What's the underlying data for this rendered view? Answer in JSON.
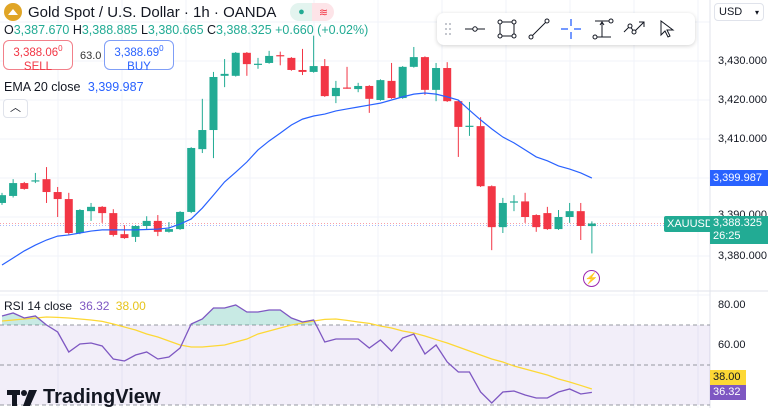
{
  "header": {
    "symbol_title": "Gold Spot / U.S. Dollar · 1h · OANDA",
    "market_status_icon": "green-dot-open",
    "ohlc": {
      "o_label": "O",
      "o": "3,387.670",
      "h_label": "H",
      "h": "3,388.885",
      "l_label": "L",
      "l": "3,380.665",
      "c_label": "C",
      "c": "3,388.325",
      "change": "+0.660 (+0.02%)"
    }
  },
  "trade": {
    "sell_price": "3,388.06",
    "sell_sup": "0",
    "sell_label": "SELL",
    "spread": "63.0",
    "buy_price": "3,388.69",
    "buy_sup": "0",
    "buy_label": "BUY"
  },
  "ema_legend": {
    "label": "EMA 20 close",
    "value": "3,399.987"
  },
  "collapse_icon": "chevron-up-icon",
  "toolbar": {
    "tools": [
      "drag-handle",
      "horizontal-ray",
      "rectangle",
      "trend-line",
      "crosshair",
      "price-range",
      "path",
      "cursor"
    ]
  },
  "currency": {
    "label": "USD"
  },
  "price_axis": {
    "ticks": [
      "3,430.000",
      "3,420.000",
      "3,410.000",
      "3,390.000",
      "3,380.000"
    ],
    "tick_values": [
      3430,
      3420,
      3410,
      3390,
      3380
    ]
  },
  "tags": {
    "ema_value": "3,399.987",
    "symbol": "XAUUSD",
    "last_price": "3,388.325",
    "countdown": "26:25"
  },
  "rsi": {
    "legend_label": "RSI 14 close",
    "rsi_value": "36.32",
    "ma_value": "38.00",
    "ticks": [
      "80.00",
      "60.00"
    ],
    "tick_values": [
      80,
      60
    ],
    "band": [
      30,
      70
    ],
    "mid": 50
  },
  "brand": {
    "name": "TradingView"
  },
  "colors": {
    "up": "#22ab94",
    "down": "#f23645",
    "ema": "#2962ff",
    "rsi": "#7e57c2",
    "rsi_ma": "#fdd835",
    "band": "#7e57c2"
  },
  "chart_data": {
    "type": "candlestick",
    "ylim": [
      3370,
      3440
    ],
    "candles": [
      [
        3393.6,
        3396.2,
        3393.1,
        3395.6
      ],
      [
        3395.4,
        3399.7,
        3395.0,
        3398.7
      ],
      [
        3398.7,
        3399.0,
        3397.0,
        3397.2
      ],
      [
        3399.2,
        3401.3,
        3398.7,
        3399.4
      ],
      [
        3399.7,
        3402.8,
        3393.6,
        3396.4
      ],
      [
        3396.4,
        3397.7,
        3390.0,
        3394.6
      ],
      [
        3394.6,
        3396.2,
        3385.4,
        3385.9
      ],
      [
        3385.9,
        3392.0,
        3385.6,
        3391.8
      ],
      [
        3391.5,
        3393.6,
        3389.0,
        3392.6
      ],
      [
        3392.6,
        3392.8,
        3388.5,
        3391.0
      ],
      [
        3391.0,
        3392.0,
        3385.0,
        3385.4
      ],
      [
        3385.6,
        3387.9,
        3384.4,
        3384.6
      ],
      [
        3384.9,
        3387.9,
        3383.6,
        3387.7
      ],
      [
        3387.7,
        3390.2,
        3386.8,
        3389.0
      ],
      [
        3389.0,
        3390.5,
        3385.1,
        3386.2
      ],
      [
        3386.2,
        3388.7,
        3386.0,
        3386.9
      ],
      [
        3386.9,
        3391.5,
        3386.7,
        3391.3
      ],
      [
        3391.3,
        3407.9,
        3391.0,
        3407.7
      ],
      [
        3407.4,
        3420.3,
        3406.4,
        3412.3
      ],
      [
        3412.3,
        3427.2,
        3405.1,
        3425.9
      ],
      [
        3426.2,
        3430.5,
        3423.3,
        3426.7
      ],
      [
        3426.2,
        3432.3,
        3426.0,
        3432.1
      ],
      [
        3432.1,
        3432.3,
        3426.2,
        3429.2
      ],
      [
        3429.1,
        3430.8,
        3428.0,
        3429.3
      ],
      [
        3429.5,
        3432.6,
        3429.3,
        3431.3
      ],
      [
        3431.5,
        3432.4,
        3428.9,
        3431.4
      ],
      [
        3430.8,
        3431.0,
        3427.5,
        3427.7
      ],
      [
        3427.7,
        3433.1,
        3426.4,
        3427.2
      ],
      [
        3427.2,
        3436.5,
        3427.0,
        3428.7
      ],
      [
        3428.7,
        3430.5,
        3420.8,
        3421.0
      ],
      [
        3421.0,
        3424.9,
        3419.2,
        3423.1
      ],
      [
        3423.2,
        3428.5,
        3422.9,
        3423.0
      ],
      [
        3422.8,
        3424.4,
        3422.0,
        3423.6
      ],
      [
        3423.6,
        3423.8,
        3416.7,
        3420.3
      ],
      [
        3420.0,
        3425.3,
        3419.8,
        3425.1
      ],
      [
        3424.9,
        3429.5,
        3420.3,
        3420.5
      ],
      [
        3420.5,
        3428.7,
        3420.3,
        3428.5
      ],
      [
        3428.5,
        3433.6,
        3428.3,
        3431.0
      ],
      [
        3431.0,
        3431.2,
        3421.3,
        3422.6
      ],
      [
        3422.6,
        3429.5,
        3419.7,
        3428.2
      ],
      [
        3428.2,
        3429.7,
        3419.5,
        3419.7
      ],
      [
        3419.7,
        3419.9,
        3405.4,
        3413.1
      ],
      [
        3413.2,
        3419.5,
        3410.8,
        3413.4
      ],
      [
        3413.3,
        3415.6,
        3397.7,
        3397.9
      ],
      [
        3397.9,
        3398.1,
        3381.5,
        3387.4
      ],
      [
        3387.4,
        3394.9,
        3385.9,
        3393.6
      ],
      [
        3393.7,
        3395.6,
        3391.5,
        3394.0
      ],
      [
        3394.0,
        3396.2,
        3388.5,
        3390.0
      ],
      [
        3390.5,
        3390.7,
        3386.2,
        3387.4
      ],
      [
        3391.0,
        3392.6,
        3386.7,
        3386.9
      ],
      [
        3386.9,
        3391.8,
        3386.7,
        3390.0
      ],
      [
        3390.0,
        3393.6,
        3388.5,
        3391.5
      ],
      [
        3391.5,
        3393.6,
        3384.1,
        3387.7
      ],
      [
        3387.67,
        3388.885,
        3380.665,
        3388.325
      ]
    ],
    "ema20": [
      3377.7,
      3379.5,
      3381.3,
      3382.8,
      3384.1,
      3385.1,
      3385.4,
      3385.9,
      3386.4,
      3386.7,
      3386.7,
      3386.7,
      3386.7,
      3386.8,
      3386.9,
      3387.2,
      3388.2,
      3389.5,
      3392.3,
      3395.6,
      3399.0,
      3401.5,
      3404.1,
      3407.2,
      3409.5,
      3411.5,
      3413.6,
      3415.1,
      3415.9,
      3416.4,
      3417.2,
      3417.7,
      3418.2,
      3418.7,
      3419.2,
      3420.0,
      3420.8,
      3421.5,
      3421.8,
      3421.5,
      3420.8,
      3420.0,
      3417.4,
      3414.9,
      3412.6,
      3410.5,
      3409.0,
      3407.2,
      3405.4,
      3404.4,
      3403.1,
      3402.3,
      3401.3,
      3399.987
    ],
    "rsi_ylim": [
      27,
      85
    ],
    "rsi14": [
      74.5,
      76,
      73.5,
      74.5,
      70,
      66.5,
      56.5,
      60.5,
      61,
      59.5,
      53,
      52,
      55,
      56.5,
      53,
      54,
      58.5,
      70.5,
      73,
      78.5,
      78.5,
      80,
      76.5,
      76.5,
      77.5,
      77.5,
      73.5,
      71.5,
      72.5,
      61.5,
      63,
      63,
      63,
      58.5,
      62.5,
      57,
      63.5,
      65.5,
      55.5,
      60,
      51.5,
      46.5,
      46.5,
      36.5,
      31,
      36.5,
      37,
      35,
      33.5,
      33.5,
      36.5,
      38,
      35.5,
      36.32
    ],
    "rsi_ma": [
      72,
      72.5,
      73,
      73.5,
      74,
      73.8,
      73.5,
      73,
      72.5,
      71.8,
      70.5,
      69,
      67.5,
      65.5,
      64,
      62,
      60,
      59,
      59,
      59.5,
      60,
      61.5,
      63,
      65.5,
      67,
      68.5,
      70,
      71,
      72,
      72.8,
      73,
      72.3,
      71.5,
      70.8,
      69.5,
      68.5,
      67,
      66,
      64.5,
      62.7,
      61,
      59,
      57,
      55,
      53,
      51.5,
      49.5,
      48,
      46.5,
      45,
      43,
      41.5,
      39.8,
      38
    ]
  }
}
